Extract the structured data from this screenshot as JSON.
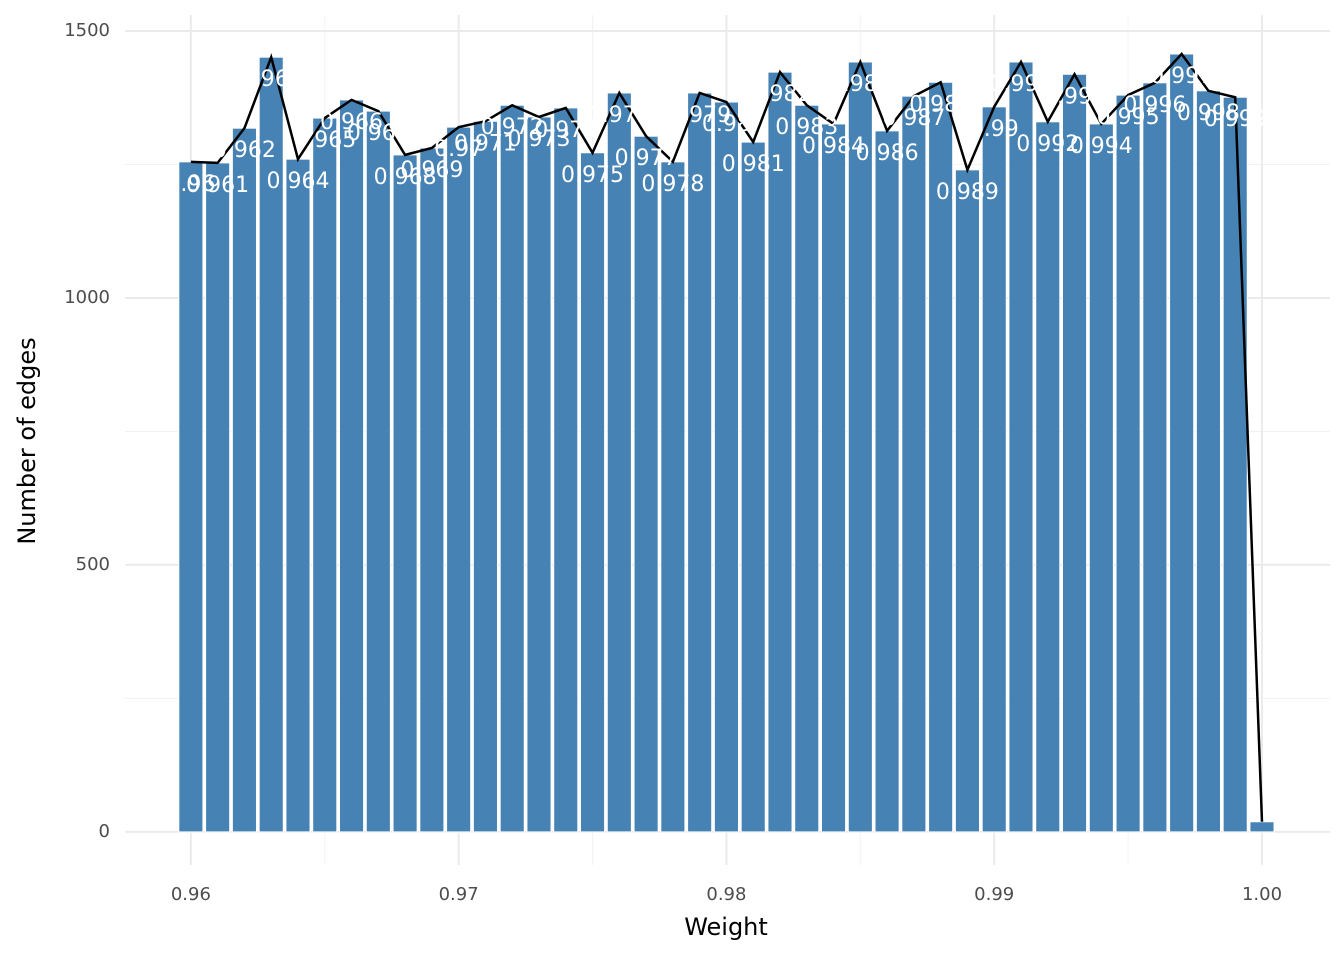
{
  "chart_data": {
    "type": "bar",
    "x_label": "Weight",
    "y_label": "Number of edges",
    "x": [
      0.96,
      0.961,
      0.962,
      0.963,
      0.964,
      0.965,
      0.966,
      0.967,
      0.968,
      0.969,
      0.97,
      0.971,
      0.972,
      0.973,
      0.974,
      0.975,
      0.976,
      0.977,
      0.978,
      0.979,
      0.98,
      0.981,
      0.982,
      0.983,
      0.984,
      0.985,
      0.986,
      0.987,
      0.988,
      0.989,
      0.99,
      0.991,
      0.992,
      0.993,
      0.994,
      0.995,
      0.996,
      0.997,
      0.998,
      0.999,
      1
    ],
    "values": [
      1255,
      1253,
      1318,
      1451,
      1260,
      1337,
      1371,
      1350,
      1268,
      1281,
      1320,
      1331,
      1361,
      1339,
      1356,
      1272,
      1384,
      1303,
      1255,
      1384,
      1367,
      1292,
      1423,
      1361,
      1326,
      1442,
      1313,
      1378,
      1404,
      1240,
      1358,
      1442,
      1330,
      1419,
      1326,
      1380,
      1403,
      1457,
      1388,
      1376,
      19
    ],
    "bar_labels": [
      "0.96",
      "0.961",
      "0.962",
      "0.963",
      "0.964",
      "0.965",
      "0.966",
      "0.967",
      "0.968",
      "0.969",
      "0.97",
      "0.971",
      "0.972",
      "0.973",
      "0.974",
      "0.975",
      "0.976",
      "0.977",
      "0.978",
      "0.979",
      "0.98",
      "0.981",
      "0.982",
      "0.983",
      "0.984",
      "0.985",
      "0.986",
      "0.987",
      "0.988",
      "0.989",
      "0.99",
      "0.991",
      "0.992",
      "0.993",
      "0.994",
      "0.995",
      "0.996",
      "0.997",
      "0.998",
      "0.999",
      null
    ],
    "color": "#4682b4",
    "line": true,
    "line_color": "#000000",
    "xlim": [
      0.95754,
      1.00254
    ],
    "ylim": [
      -62,
      1530
    ],
    "xticks": [
      0.96,
      0.97,
      0.98,
      0.99,
      {
        "value": 1,
        "label": "1.00"
      }
    ],
    "yticks": [
      0,
      500,
      1000,
      1500
    ],
    "xminor": [
      0.965,
      0.975,
      0.985,
      0.995
    ],
    "yminor": [
      250,
      750,
      1250
    ],
    "grid": true
  }
}
